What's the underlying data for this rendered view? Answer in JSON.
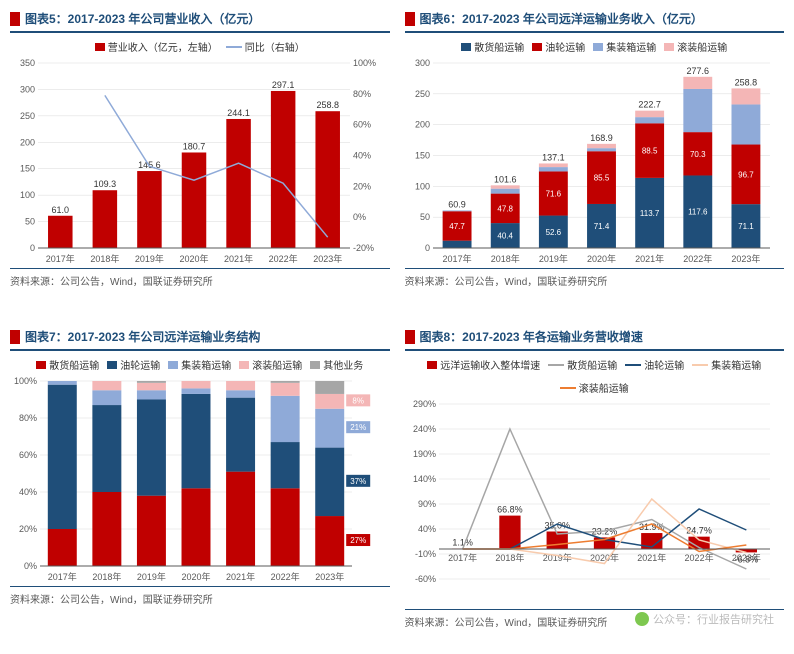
{
  "colors": {
    "red": "#c00000",
    "navy": "#1f4e79",
    "lightblue": "#8faad8",
    "pink": "#f4b6b6",
    "orange": "#ed7d31",
    "gray": "#a6a6a6",
    "grid": "#d9d9d9"
  },
  "years": [
    "2017年",
    "2018年",
    "2019年",
    "2020年",
    "2021年",
    "2022年",
    "2023年"
  ],
  "chart5": {
    "title": "图表5：2017-2023 年公司营业收入（亿元）",
    "legend": [
      {
        "label": "营业收入（亿元，左轴）",
        "type": "sq",
        "color": "#c00000"
      },
      {
        "label": "同比（右轴）",
        "type": "line",
        "color": "#8faad8"
      }
    ],
    "bars": [
      61.0,
      109.3,
      145.6,
      180.7,
      244.1,
      297.1,
      258.8
    ],
    "bar_labels": [
      "61.0",
      "109.3",
      "145.6",
      "180.7",
      "244.1",
      "297.1",
      "258.8"
    ],
    "line_yoy": [
      null,
      79,
      33,
      24,
      35,
      22,
      -13
    ],
    "yL": {
      "min": 0,
      "max": 350,
      "step": 50
    },
    "yR": {
      "min": -20,
      "max": 100,
      "step": 20
    },
    "bar_color": "#c00000",
    "line_color": "#8faad8"
  },
  "chart6": {
    "title": "图表6：2017-2023 年公司远洋运输业务收入（亿元）",
    "legend": [
      {
        "label": "散货船运输",
        "color": "#1f4e79"
      },
      {
        "label": "油轮运输",
        "color": "#c00000"
      },
      {
        "label": "集装箱运输",
        "color": "#8faad8"
      },
      {
        "label": "滚装船运输",
        "color": "#f4b6b6"
      }
    ],
    "totals": [
      60.9,
      101.6,
      137.1,
      168.9,
      222.7,
      277.6,
      258.8
    ],
    "segments_keys": [
      "navy",
      "red",
      "lightblue",
      "pink"
    ],
    "segments": [
      {
        "navy": 11.9,
        "red": 47.7,
        "lightblue": 1.3,
        "pink": 0,
        "labels": {
          "navy": "11.9",
          "red": "47.7"
        }
      },
      {
        "navy": 40.4,
        "red": 47.8,
        "lightblue": 8,
        "pink": 5.4,
        "labels": {
          "navy": "40.4",
          "red": "47.8"
        }
      },
      {
        "navy": 52.6,
        "red": 71.6,
        "lightblue": 7,
        "pink": 5.9,
        "labels": {
          "navy": "52.6",
          "red": "71.6"
        }
      },
      {
        "navy": 71.4,
        "red": 85.5,
        "lightblue": 5,
        "pink": 7,
        "labels": {
          "navy": "71.4",
          "red": "85.5"
        }
      },
      {
        "navy": 113.7,
        "red": 88.5,
        "lightblue": 10,
        "pink": 10.5,
        "labels": {
          "navy": "113.7",
          "red": "88.5"
        }
      },
      {
        "navy": 117.6,
        "red": 70.3,
        "lightblue": 70,
        "pink": 19.7,
        "labels": {
          "navy": "117.6",
          "red": "70.3"
        }
      },
      {
        "navy": 71.1,
        "red": 96.7,
        "lightblue": 65,
        "pink": 26,
        "labels": {
          "navy": "71.1",
          "red": "96.7"
        }
      }
    ],
    "yL": {
      "min": 0,
      "max": 300,
      "step": 50
    }
  },
  "chart7": {
    "title": "图表7：2017-2023 年公司远洋运输业务结构",
    "legend": [
      {
        "label": "散货船运输",
        "color": "#c00000"
      },
      {
        "label": "油轮运输",
        "color": "#1f4e79"
      },
      {
        "label": "集装箱运输",
        "color": "#8faad8"
      },
      {
        "label": "滚装船运输",
        "color": "#f4b6b6"
      },
      {
        "label": "其他业务",
        "color": "#a6a6a6"
      }
    ],
    "segments_keys": [
      "red",
      "navy",
      "lightblue",
      "pink",
      "gray"
    ],
    "segments": [
      {
        "red": 20,
        "navy": 78,
        "lightblue": 2,
        "pink": 0,
        "gray": 0
      },
      {
        "red": 40,
        "navy": 47,
        "lightblue": 8,
        "pink": 5,
        "gray": 0
      },
      {
        "red": 38,
        "navy": 52,
        "lightblue": 5,
        "pink": 4,
        "gray": 1
      },
      {
        "red": 42,
        "navy": 51,
        "lightblue": 3,
        "pink": 4,
        "gray": 0
      },
      {
        "red": 51,
        "navy": 40,
        "lightblue": 4,
        "pink": 5,
        "gray": 0
      },
      {
        "red": 42,
        "navy": 25,
        "lightblue": 25,
        "pink": 7,
        "gray": 1
      },
      {
        "red": 27,
        "navy": 37,
        "lightblue": 21,
        "pink": 8,
        "gray": 7
      }
    ],
    "end_labels": {
      "pink": "8%",
      "lightblue": "21%",
      "navy": "37%",
      "red": "27%"
    }
  },
  "chart8": {
    "title": "图表8：2017-2023 年各运输业务营收增速",
    "legend": [
      {
        "label": "远洋运输收入整体增速",
        "type": "sq",
        "color": "#c00000"
      },
      {
        "label": "散货船运输",
        "type": "line",
        "color": "#a6a6a6"
      },
      {
        "label": "油轮运输",
        "type": "line",
        "color": "#1f4e79"
      },
      {
        "label": "集装箱运输",
        "type": "line",
        "color": "#f8cbad"
      },
      {
        "label": "滚装船运输",
        "type": "line",
        "color": "#ed7d31"
      }
    ],
    "bars": [
      1.1,
      66.8,
      35.0,
      23.2,
      31.9,
      24.7,
      -6.8
    ],
    "bar_labels": [
      "1.1%",
      "66.8%",
      "35.0%",
      "23.2%",
      "31.9%",
      "24.7%",
      "-6.8%"
    ],
    "lines": {
      "gray": [
        0,
        240,
        30,
        36,
        59,
        3,
        -40
      ],
      "navy": [
        0,
        0,
        50,
        19,
        4,
        80,
        38
      ],
      "peach": [
        0,
        0,
        -13,
        -29,
        100,
        18,
        -7
      ],
      "orange": [
        0,
        0,
        9,
        19,
        50,
        -5,
        8
      ]
    },
    "line_colors": {
      "gray": "#a6a6a6",
      "navy": "#1f4e79",
      "peach": "#f8cbad",
      "orange": "#ed7d31"
    },
    "yL": {
      "min": -60,
      "max": 290,
      "step": 50
    }
  },
  "source": "资料来源：公司公告，Wind，国联证券研究所",
  "watermark": "公众号：行业报告研究社"
}
